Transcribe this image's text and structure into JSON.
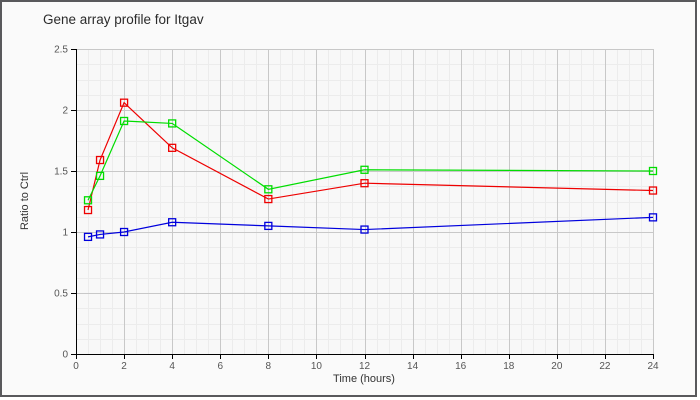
{
  "panel": {
    "title": "Gene array profile for Itgav"
  },
  "chart_data": {
    "type": "line",
    "title": "Gene array profile for Itgav",
    "xlabel": "Time (hours)",
    "ylabel": "Ratio to Ctrl",
    "xlim": [
      0,
      24
    ],
    "ylim": [
      0,
      2.5
    ],
    "x_ticks": [
      0,
      2,
      4,
      6,
      8,
      10,
      12,
      14,
      16,
      18,
      20,
      22,
      24
    ],
    "y_ticks": [
      0,
      0.5,
      1,
      1.5,
      2,
      2.5
    ],
    "y_tick_labels": [
      "0",
      "0.5",
      "1",
      "1.5",
      "2",
      "2.5"
    ],
    "grid": {
      "minor_x_step": 0.5,
      "minor_y_step": 0.125,
      "major_x_step": 2,
      "major_y_step": 0.5
    },
    "legend": "none",
    "marker": "open-square",
    "x": [
      0.5,
      1,
      2,
      4,
      8,
      12,
      24
    ],
    "series": [
      {
        "name": "red-series",
        "color": "#ee0000",
        "values": [
          1.18,
          1.59,
          2.06,
          1.69,
          1.27,
          1.4,
          1.34
        ]
      },
      {
        "name": "green-series",
        "color": "#00dd00",
        "values": [
          1.26,
          1.46,
          1.91,
          1.89,
          1.35,
          1.51,
          1.5
        ]
      },
      {
        "name": "blue-series",
        "color": "#0000dd",
        "values": [
          0.96,
          0.98,
          1.0,
          1.08,
          1.05,
          1.02,
          1.12
        ]
      }
    ],
    "colors": {
      "panel_border": "#59595c",
      "panel_background": "#fafafa",
      "plot_background": "#f8f8f8",
      "grid_minor": "#ececec",
      "grid_major": "#c8c8c8",
      "axis": "#000000",
      "tick_text": "#555555",
      "label_text": "#333333",
      "title_text": "#2b2b2b"
    }
  }
}
